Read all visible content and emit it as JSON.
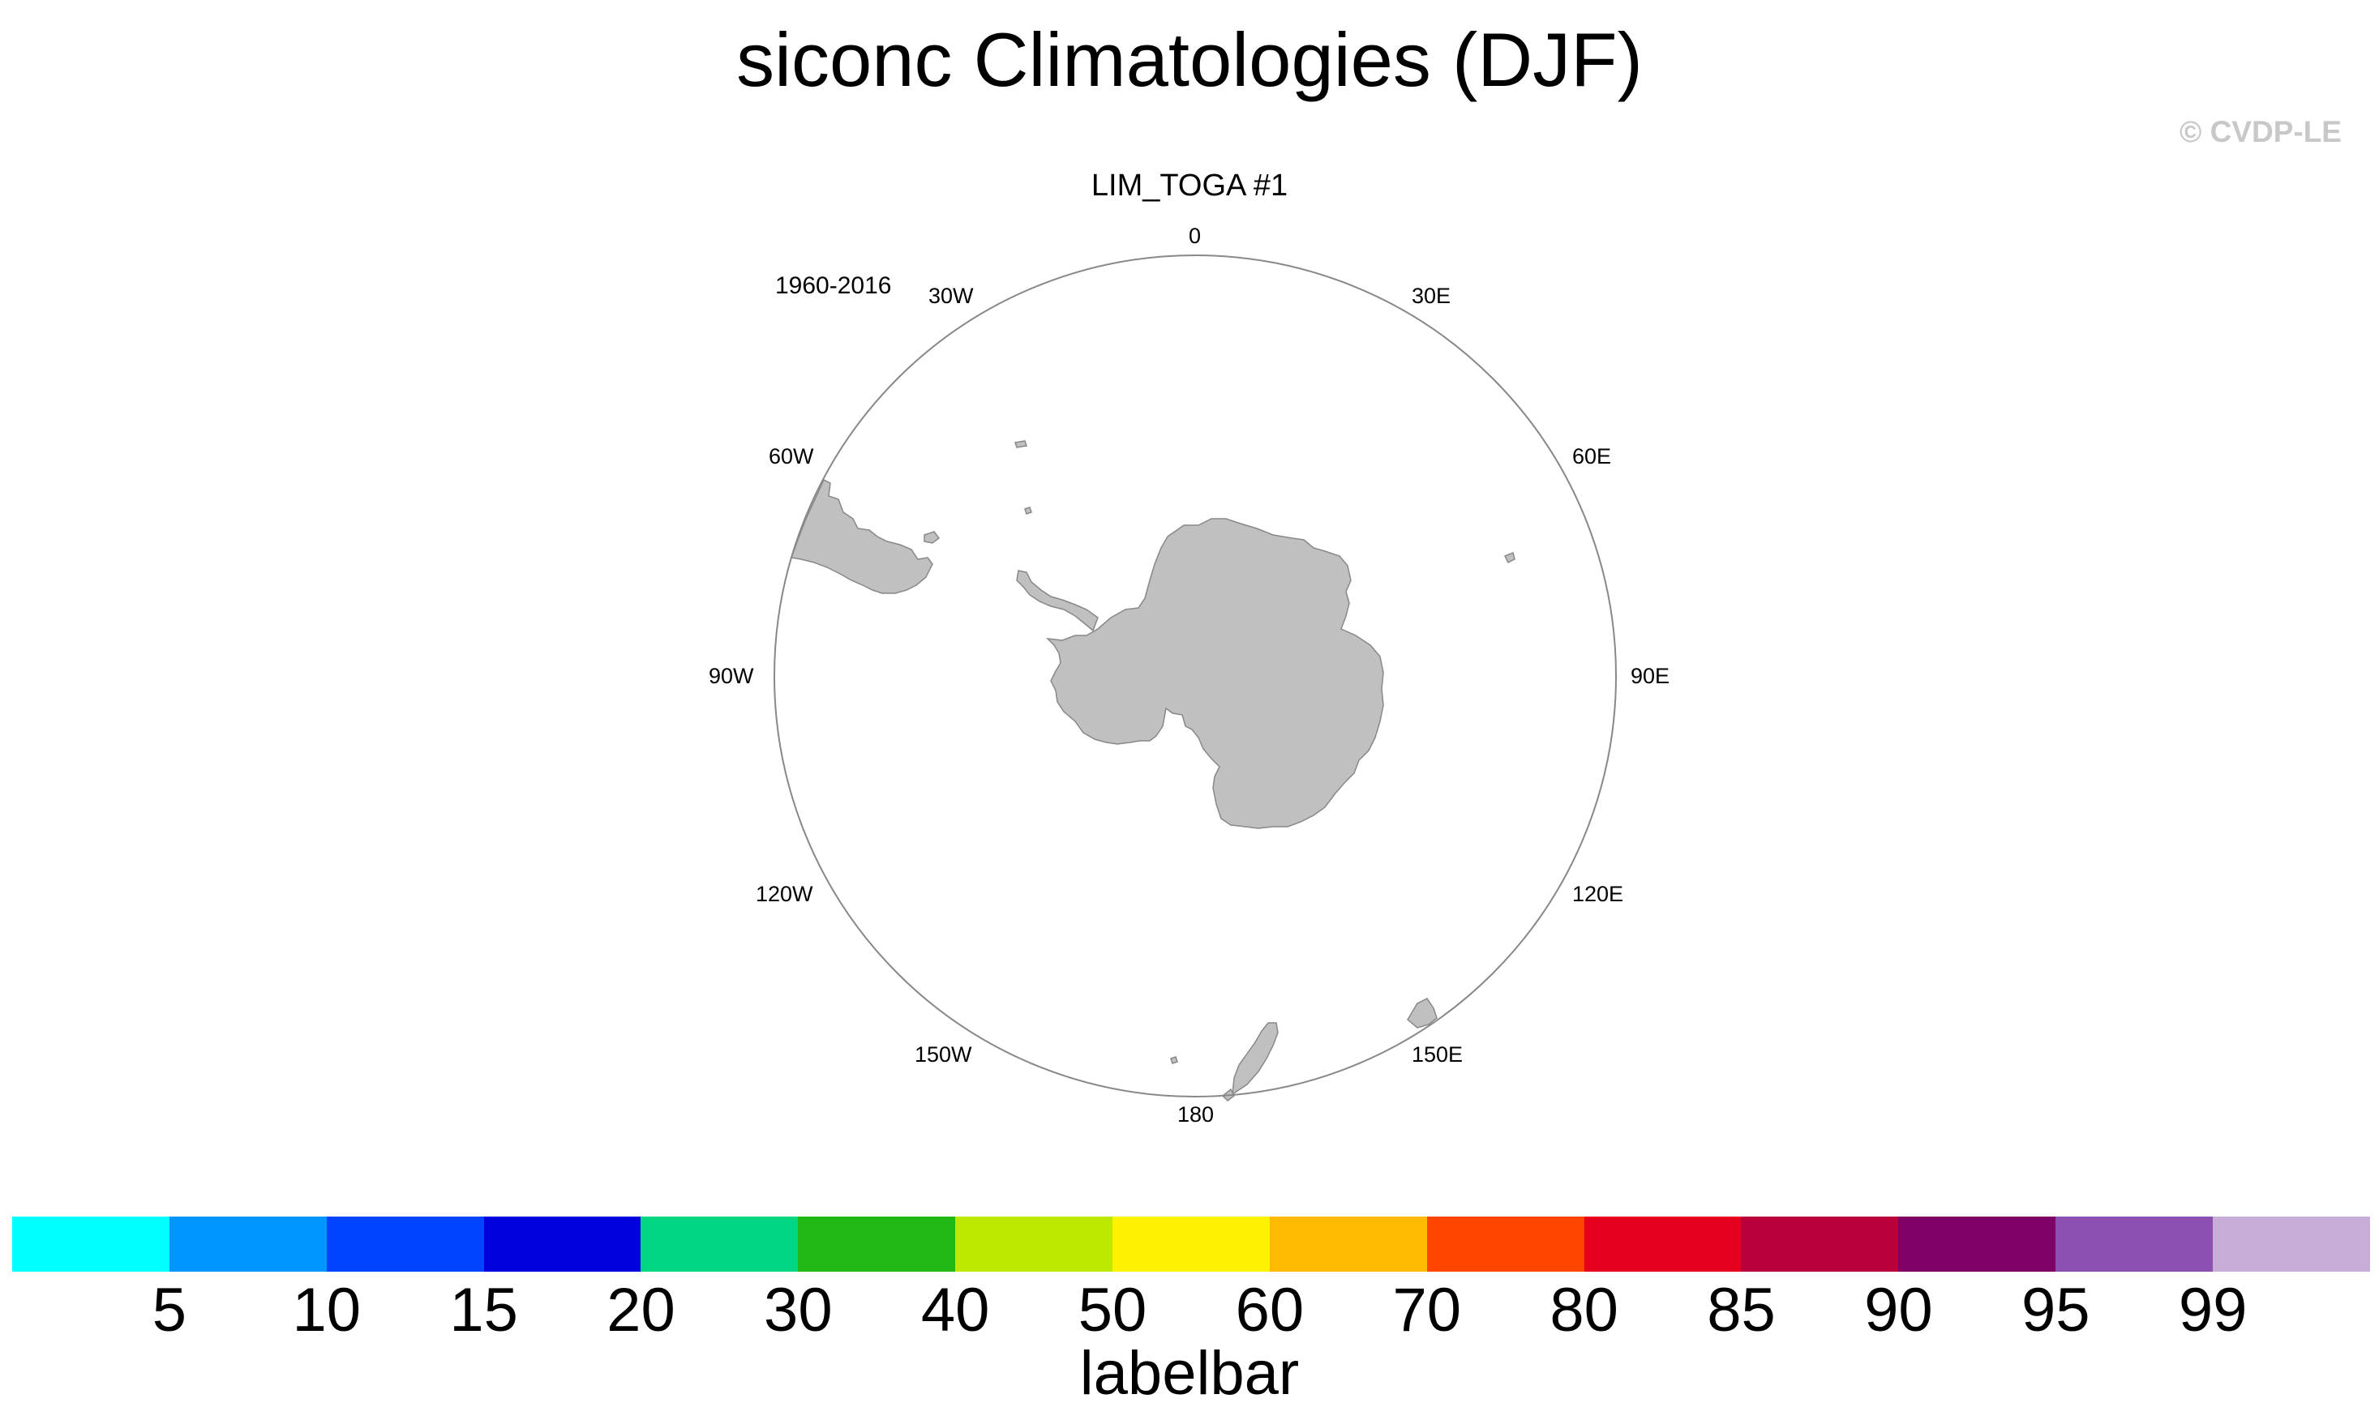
{
  "header": {
    "title": "siconc Climatologies (DJF)",
    "credit": "© CVDP-LE"
  },
  "panel": {
    "title": "LIM_TOGA #1",
    "period": "1960-2016"
  },
  "map": {
    "projection": "south-polar-stereographic",
    "land_color": "#c0c0c0",
    "outline_color": "#888888",
    "longitude_labels": {
      "lon_0": "0",
      "lon_30e": "30E",
      "lon_60e": "60E",
      "lon_90e": "90E",
      "lon_120e": "120E",
      "lon_150e": "150E",
      "lon_180": "180",
      "lon_150w": "150W",
      "lon_120w": "120W",
      "lon_90w": "90W",
      "lon_60w": "60W",
      "lon_30w": "30W"
    }
  },
  "labelbar": {
    "title": "labelbar",
    "colors": [
      "#00ffff",
      "#0096ff",
      "#0044ff",
      "#0000dd",
      "#00d783",
      "#21b813",
      "#bde800",
      "#fff200",
      "#ffb900",
      "#ff4500",
      "#e6001e",
      "#b9003b",
      "#7f0066",
      "#8b50b0",
      "#c7aed8"
    ],
    "ticks": [
      "5",
      "10",
      "15",
      "20",
      "30",
      "40",
      "50",
      "60",
      "70",
      "80",
      "85",
      "90",
      "95",
      "99"
    ]
  }
}
